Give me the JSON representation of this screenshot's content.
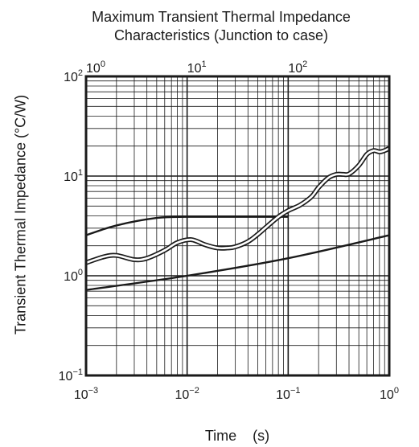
{
  "chart_data": {
    "type": "line",
    "title": [
      "Maximum Transient Thermal Impedance",
      "Characteristics (Junction to case)"
    ],
    "xlabel": "Time    (s)",
    "ylabel": "Transient Thermal Impedance  (°C/W)",
    "x_scale": "log",
    "y_scale": "log",
    "xlim": [
      0.001,
      1
    ],
    "ylim": [
      0.1,
      100
    ],
    "secondary_xlim": [
      1,
      1000
    ],
    "grid": true,
    "x_ticks": [
      {
        "base": "10",
        "exp": "−3",
        "value": 0.001
      },
      {
        "base": "10",
        "exp": "−2",
        "value": 0.01
      },
      {
        "base": "10",
        "exp": "−1",
        "value": 0.1
      },
      {
        "base": "10",
        "exp": "0",
        "value": 1
      }
    ],
    "x_ticks_top": [
      {
        "base": "10",
        "exp": "0",
        "value": 1
      },
      {
        "base": "10",
        "exp": "1",
        "value": 10
      },
      {
        "base": "10",
        "exp": "2",
        "value": 100
      }
    ],
    "y_ticks": [
      {
        "base": "10",
        "exp": "−1",
        "value": 0.1
      },
      {
        "base": "10",
        "exp": "0",
        "value": 1
      },
      {
        "base": "10",
        "exp": "1",
        "value": 10
      },
      {
        "base": "10",
        "exp": "2",
        "value": 100
      }
    ],
    "series": [
      {
        "style": "solid",
        "color": "#1a1a1a",
        "x": [
          0.001,
          0.002,
          0.005,
          0.01,
          0.02,
          0.05,
          0.1
        ],
        "y": [
          2.55,
          3.2,
          3.8,
          3.9,
          3.9,
          3.9,
          3.9
        ]
      },
      {
        "style": "double",
        "color": "#1a1a1a",
        "x": [
          0.001,
          0.0015,
          0.002,
          0.003,
          0.004,
          0.006,
          0.008,
          0.011,
          0.015,
          0.02,
          0.025,
          0.03,
          0.04,
          0.05,
          0.06,
          0.08,
          0.1,
          0.13,
          0.17,
          0.2,
          0.25,
          0.3,
          0.35,
          0.4,
          0.5,
          0.6,
          0.7,
          0.8,
          0.9,
          1.0
        ],
        "y": [
          1.35,
          1.55,
          1.6,
          1.45,
          1.5,
          1.8,
          2.15,
          2.3,
          2.05,
          1.9,
          1.9,
          1.95,
          2.2,
          2.6,
          3.05,
          3.9,
          4.5,
          5.1,
          6.2,
          7.7,
          9.6,
          10.4,
          10.4,
          10.5,
          12.8,
          16.5,
          18.0,
          17.5,
          18.0,
          19.0
        ]
      },
      {
        "style": "solid",
        "color": "#1a1a1a",
        "x": [
          0.001,
          0.01,
          0.1,
          1.0
        ],
        "y": [
          0.72,
          1.0,
          1.5,
          2.55
        ]
      }
    ]
  }
}
